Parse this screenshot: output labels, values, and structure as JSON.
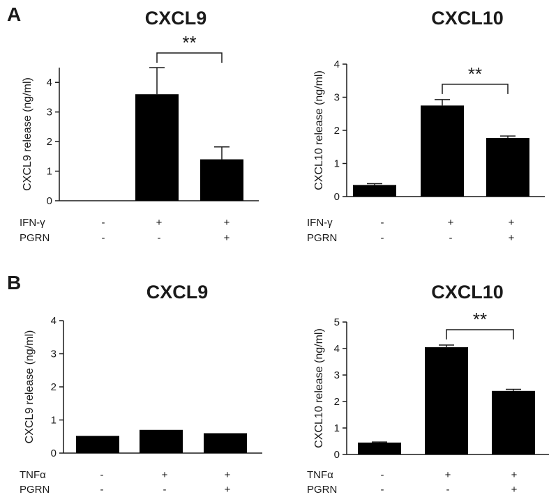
{
  "chart_data": [
    {
      "type": "bar",
      "panel": "A",
      "title": "CXCL9",
      "ylabel": "CXCL9 release (ng/ml)",
      "ylim": [
        0,
        4.5
      ],
      "yticks": [
        "0",
        "1",
        "2",
        "3",
        "4"
      ],
      "values": [
        0.0,
        3.6,
        1.4
      ],
      "errors": [
        0.0,
        0.9,
        0.42
      ],
      "conditions": [
        {
          "label": "IFN-γ",
          "marks": [
            "-",
            "+",
            "+"
          ]
        },
        {
          "label": "PGRN",
          "marks": [
            "-",
            "-",
            "+"
          ]
        }
      ],
      "significance": {
        "text": "**",
        "from": 1,
        "to": 2
      }
    },
    {
      "type": "bar",
      "panel": "",
      "title": "CXCL10",
      "ylabel": "CXCL10 release (ng/ml)",
      "ylim": [
        0,
        4
      ],
      "yticks": [
        "0",
        "1",
        "2",
        "3",
        "4"
      ],
      "values": [
        0.35,
        2.75,
        1.77
      ],
      "errors": [
        0.04,
        0.18,
        0.06
      ],
      "conditions": [
        {
          "label": "IFN-γ",
          "marks": [
            "-",
            "+",
            "+"
          ]
        },
        {
          "label": "PGRN",
          "marks": [
            "-",
            "-",
            "+"
          ]
        }
      ],
      "significance": {
        "text": "**",
        "from": 1,
        "to": 2
      }
    },
    {
      "type": "bar",
      "panel": "B",
      "title": "CXCL9",
      "ylabel": "CXCL9 release (ng/ml)",
      "ylim": [
        0,
        4
      ],
      "yticks": [
        "0",
        "1",
        "2",
        "3",
        "4"
      ],
      "values": [
        0.52,
        0.7,
        0.6
      ],
      "errors": [
        0.0,
        0.0,
        0.0
      ],
      "conditions": [
        {
          "label": "TNFα",
          "marks": [
            "-",
            "+",
            "+"
          ]
        },
        {
          "label": "PGRN",
          "marks": [
            "-",
            "-",
            "+"
          ]
        }
      ],
      "significance": null
    },
    {
      "type": "bar",
      "panel": "",
      "title": "CXCL10",
      "ylabel": "CXCL10 release (ng/ml)",
      "ylim": [
        0,
        5
      ],
      "yticks": [
        "0",
        "1",
        "2",
        "3",
        "4",
        "5"
      ],
      "values": [
        0.45,
        4.05,
        2.4
      ],
      "errors": [
        0.02,
        0.08,
        0.06
      ],
      "conditions": [
        {
          "label": "TNFα",
          "marks": [
            "-",
            "+",
            "+"
          ]
        },
        {
          "label": "PGRN",
          "marks": [
            "-",
            "-",
            "+"
          ]
        }
      ],
      "significance": {
        "text": "**",
        "from": 1,
        "to": 2
      }
    }
  ],
  "colors": {
    "bar": "#000000",
    "axis": "#1a1a1a",
    "text": "#1a1a1a"
  }
}
